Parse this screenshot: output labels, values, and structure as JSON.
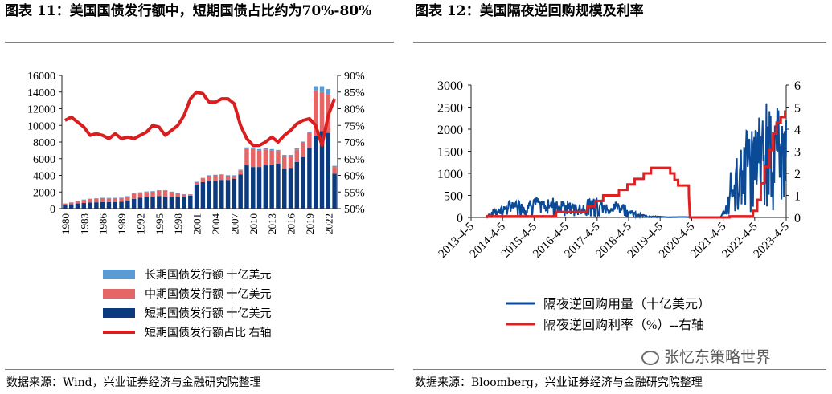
{
  "left": {
    "title": "图表 11：美国国债发行额中，短期国债占比约为70%-80%",
    "source": "数据来源：Wind，兴业证券经济与金融研究院整理"
  },
  "right": {
    "title": "图表 12：美国隔夜逆回购规模及利率",
    "source": "数据来源：Bloomberg，兴业证券经济与金融研究院整理"
  },
  "watermark": "张忆东策略世界",
  "chart_data": [
    {
      "type": "bar",
      "stacked": true,
      "years": [
        1980,
        1981,
        1982,
        1983,
        1984,
        1985,
        1986,
        1987,
        1988,
        1989,
        1990,
        1991,
        1992,
        1993,
        1994,
        1995,
        1996,
        1997,
        1998,
        1999,
        2000,
        2001,
        2002,
        2003,
        2004,
        2005,
        2006,
        2007,
        2008,
        2009,
        2010,
        2011,
        2012,
        2013,
        2014,
        2015,
        2016,
        2017,
        2018,
        2019,
        2020,
        2021,
        2022,
        2023
      ],
      "x_tick_labels": [
        "1980",
        "1983",
        "1986",
        "1989",
        "1992",
        "1995",
        "1998",
        "2001",
        "2004",
        "2007",
        "2010",
        "2013",
        "2016",
        "2019",
        "2022"
      ],
      "series": [
        {
          "name": "短期国债发行额 十亿美元",
          "color": "#0b3a7e",
          "values": [
            430,
            520,
            620,
            670,
            730,
            760,
            780,
            790,
            800,
            830,
            950,
            1180,
            1300,
            1400,
            1450,
            1500,
            1450,
            1400,
            1350,
            1400,
            1550,
            2900,
            3200,
            3400,
            3350,
            3450,
            3450,
            3600,
            4100,
            5200,
            5000,
            5000,
            5200,
            5300,
            5400,
            4800,
            4900,
            5600,
            6200,
            7300,
            8800,
            9300,
            9100,
            4200
          ]
        },
        {
          "name": "中期国债发行额 十亿美元",
          "color": "#e46666",
          "values": [
            180,
            210,
            300,
            380,
            420,
            440,
            480,
            450,
            450,
            450,
            500,
            600,
            600,
            600,
            600,
            650,
            700,
            580,
            500,
            300,
            150,
            300,
            450,
            550,
            650,
            600,
            520,
            350,
            500,
            2000,
            2200,
            2000,
            1900,
            1700,
            1500,
            1500,
            1400,
            1500,
            1700,
            1800,
            5400,
            4700,
            4600,
            800
          ]
        },
        {
          "name": "长期国债发行额 十亿美元",
          "color": "#5b9bd5",
          "values": [
            20,
            20,
            30,
            40,
            40,
            40,
            50,
            50,
            50,
            50,
            50,
            60,
            60,
            60,
            60,
            70,
            70,
            60,
            50,
            40,
            30,
            40,
            50,
            60,
            70,
            70,
            60,
            60,
            80,
            150,
            150,
            150,
            150,
            150,
            150,
            150,
            150,
            150,
            150,
            150,
            500,
            700,
            650,
            150
          ]
        }
      ],
      "line": {
        "name": "短期国债发行额占比  右轴",
        "color": "#d81e1e",
        "values": [
          76.5,
          77.5,
          76,
          74.5,
          72,
          72.5,
          72,
          71,
          72.5,
          71,
          71.5,
          71,
          72,
          73,
          75,
          74.5,
          72,
          73.5,
          75,
          78,
          83,
          85,
          84.5,
          82,
          82,
          83,
          83,
          81.5,
          75,
          71,
          69,
          69,
          70,
          71.5,
          70,
          72,
          73.5,
          75.5,
          76.5,
          77,
          75,
          69,
          78,
          83
        ]
      },
      "ylim_left": [
        0,
        16000
      ],
      "yticks_left": [
        "0",
        "2000",
        "4000",
        "6000",
        "8000",
        "10000",
        "12000",
        "14000",
        "16000"
      ],
      "ylim_right": [
        50,
        90
      ],
      "yticks_right": [
        "50%",
        "55%",
        "60%",
        "65%",
        "70%",
        "75%",
        "80%",
        "85%",
        "90%"
      ],
      "legend": [
        "长期国债发行额 十亿美元",
        "中期国债发行额 十亿美元",
        "短期国债发行额 十亿美元",
        "短期国债发行额占比  右轴"
      ],
      "legend_placement": "bottom"
    },
    {
      "type": "line",
      "x_tick_labels": [
        "2013-4-5",
        "2014-4-5",
        "2015-4-5",
        "2016-4-5",
        "2017-4-5",
        "2018-4-5",
        "2019-4-5",
        "2020-4-5",
        "2021-4-5",
        "2022-4-5",
        "2023-4-5"
      ],
      "x_start": "2013-4-5",
      "x_end": "2023-4-5",
      "ylim_left": [
        0,
        3000
      ],
      "yticks_left": [
        "0",
        "500",
        "1000",
        "1500",
        "2000",
        "2500",
        "3000"
      ],
      "ylim_right": [
        0,
        6
      ],
      "yticks_right": [
        "0",
        "1",
        "2",
        "3",
        "4",
        "5",
        "6"
      ],
      "series": [
        {
          "name": "隔夜逆回购用量（十亿美元）",
          "color": "#0b4a96",
          "axis": "left",
          "points": [
            [
              "2013-09-23",
              10
            ],
            [
              "2013-12-31",
              197
            ],
            [
              "2014-03-31",
              240
            ],
            [
              "2014-06-30",
              339
            ],
            [
              "2014-09-30",
              400
            ],
            [
              "2014-12-31",
              300
            ],
            [
              "2015-03-31",
              480
            ],
            [
              "2015-06-30",
              330
            ],
            [
              "2015-09-30",
              370
            ],
            [
              "2015-12-31",
              450
            ],
            [
              "2016-03-31",
              300
            ],
            [
              "2016-06-30",
              300
            ],
            [
              "2016-09-30",
              280
            ],
            [
              "2016-12-31",
              380
            ],
            [
              "2017-03-31",
              480
            ],
            [
              "2017-06-30",
              300
            ],
            [
              "2017-09-30",
              250
            ],
            [
              "2017-12-31",
              400
            ],
            [
              "2018-03-31",
              200
            ],
            [
              "2018-06-30",
              100
            ],
            [
              "2018-09-30",
              50
            ],
            [
              "2018-12-31",
              30
            ],
            [
              "2019-06-30",
              5
            ],
            [
              "2019-12-31",
              10
            ],
            [
              "2020-03-31",
              5
            ],
            [
              "2020-06-30",
              2
            ],
            [
              "2021-03-01",
              0
            ],
            [
              "2021-03-31",
              100
            ],
            [
              "2021-04-30",
              150
            ],
            [
              "2021-05-31",
              500
            ],
            [
              "2021-06-30",
              990
            ],
            [
              "2021-07-31",
              1000
            ],
            [
              "2021-09-30",
              1500
            ],
            [
              "2021-12-31",
              1900
            ],
            [
              "2022-03-31",
              1800
            ],
            [
              "2022-06-30",
              2200
            ],
            [
              "2022-09-30",
              2400
            ],
            [
              "2022-12-30",
              2550
            ],
            [
              "2023-03-31",
              2300
            ],
            [
              "2023-04-05",
              2200
            ]
          ]
        },
        {
          "name": "隔夜逆回购利率（%）--右轴",
          "color": "#e02020",
          "axis": "right",
          "points": [
            [
              "2013-09-23",
              0.05
            ],
            [
              "2015-12-16",
              0.05
            ],
            [
              "2015-12-17",
              0.25
            ],
            [
              "2016-12-14",
              0.25
            ],
            [
              "2016-12-15",
              0.5
            ],
            [
              "2017-03-15",
              0.5
            ],
            [
              "2017-03-16",
              0.75
            ],
            [
              "2017-06-14",
              0.75
            ],
            [
              "2017-06-15",
              1.0
            ],
            [
              "2017-12-13",
              1.0
            ],
            [
              "2017-12-14",
              1.25
            ],
            [
              "2018-03-21",
              1.25
            ],
            [
              "2018-03-22",
              1.5
            ],
            [
              "2018-06-13",
              1.5
            ],
            [
              "2018-06-14",
              1.75
            ],
            [
              "2018-09-26",
              1.75
            ],
            [
              "2018-09-27",
              2.0
            ],
            [
              "2018-12-19",
              2.0
            ],
            [
              "2018-12-20",
              2.25
            ],
            [
              "2019-05-01",
              2.25
            ],
            [
              "2019-05-02",
              2.25
            ],
            [
              "2019-07-31",
              2.25
            ],
            [
              "2019-08-01",
              2.0
            ],
            [
              "2019-09-18",
              2.0
            ],
            [
              "2019-09-19",
              1.7
            ],
            [
              "2019-10-30",
              1.7
            ],
            [
              "2019-10-31",
              1.45
            ],
            [
              "2020-03-02",
              1.45
            ],
            [
              "2020-03-04",
              0.98
            ],
            [
              "2020-03-16",
              0.0
            ],
            [
              "2021-06-16",
              0.0
            ],
            [
              "2021-06-17",
              0.05
            ],
            [
              "2022-03-16",
              0.05
            ],
            [
              "2022-03-17",
              0.3
            ],
            [
              "2022-05-04",
              0.3
            ],
            [
              "2022-05-05",
              0.8
            ],
            [
              "2022-06-15",
              0.8
            ],
            [
              "2022-06-16",
              1.55
            ],
            [
              "2022-07-27",
              1.55
            ],
            [
              "2022-07-28",
              2.3
            ],
            [
              "2022-09-21",
              2.3
            ],
            [
              "2022-09-22",
              3.05
            ],
            [
              "2022-11-02",
              3.05
            ],
            [
              "2022-11-03",
              3.8
            ],
            [
              "2022-12-14",
              3.8
            ],
            [
              "2022-12-15",
              4.3
            ],
            [
              "2023-02-01",
              4.3
            ],
            [
              "2023-02-02",
              4.55
            ],
            [
              "2023-03-22",
              4.55
            ],
            [
              "2023-03-23",
              4.8
            ],
            [
              "2023-04-05",
              4.8
            ]
          ]
        }
      ],
      "legend": [
        "隔夜逆回购用量（十亿美元）",
        "隔夜逆回购利率（%）--右轴"
      ],
      "legend_placement": "bottom"
    }
  ]
}
